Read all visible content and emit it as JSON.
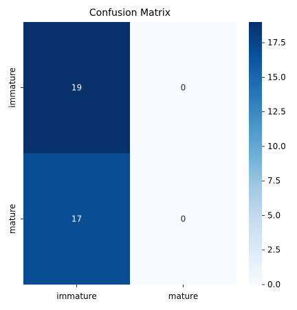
{
  "chart_data": {
    "type": "heatmap",
    "title": "Confusion Matrix",
    "row_labels": [
      "immature",
      "mature"
    ],
    "col_labels": [
      "immature",
      "mature"
    ],
    "values": [
      [
        19,
        0
      ],
      [
        17,
        0
      ]
    ],
    "colormap": "Blues",
    "colorbar": {
      "min": 0,
      "max": 19,
      "ticks": [
        0.0,
        2.5,
        5.0,
        7.5,
        10.0,
        12.5,
        15.0,
        17.5
      ],
      "tick_labels": [
        "0.0",
        "2.5",
        "5.0",
        "7.5",
        "10.0",
        "12.5",
        "15.0",
        "17.5"
      ]
    },
    "annot_text_colors": {
      "dark": "#ffffff",
      "light": "#262626"
    }
  }
}
